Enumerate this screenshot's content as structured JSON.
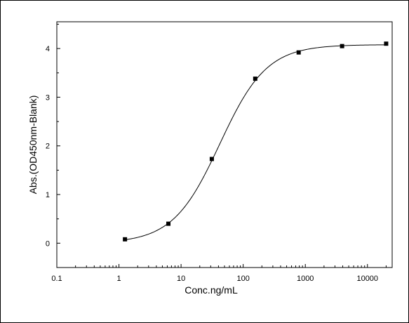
{
  "chart_data": {
    "type": "scatter",
    "title": "",
    "xlabel": "Conc.ng/mL",
    "ylabel": "Abs.(OD450nm-Blank)",
    "x_scale": "log",
    "xlim": [
      0.1,
      25000
    ],
    "ylim": [
      -0.5,
      4.55
    ],
    "x_ticks": [
      0.1,
      1,
      10,
      100,
      1000,
      10000
    ],
    "x_tick_labels": [
      "0.1",
      "1",
      "10",
      "100",
      "1000",
      "10000"
    ],
    "y_ticks": [
      0,
      1,
      2,
      3,
      4
    ],
    "y_tick_labels": [
      "0",
      "1",
      "2",
      "3",
      "4"
    ],
    "grid": false,
    "legend": "none",
    "series": [
      {
        "marker": "square",
        "color": "#000000",
        "x": [
          1.25,
          6.25,
          31.25,
          156.25,
          781.25,
          3906.25,
          20000
        ],
        "y": [
          0.08,
          0.4,
          1.73,
          3.38,
          3.92,
          4.05,
          4.1
        ]
      }
    ],
    "fit_curve": {
      "type": "four-parameter-logistic",
      "color": "#000000",
      "bottom": 0.0,
      "top": 4.08,
      "ec50": 42,
      "hill": 1.15
    }
  }
}
